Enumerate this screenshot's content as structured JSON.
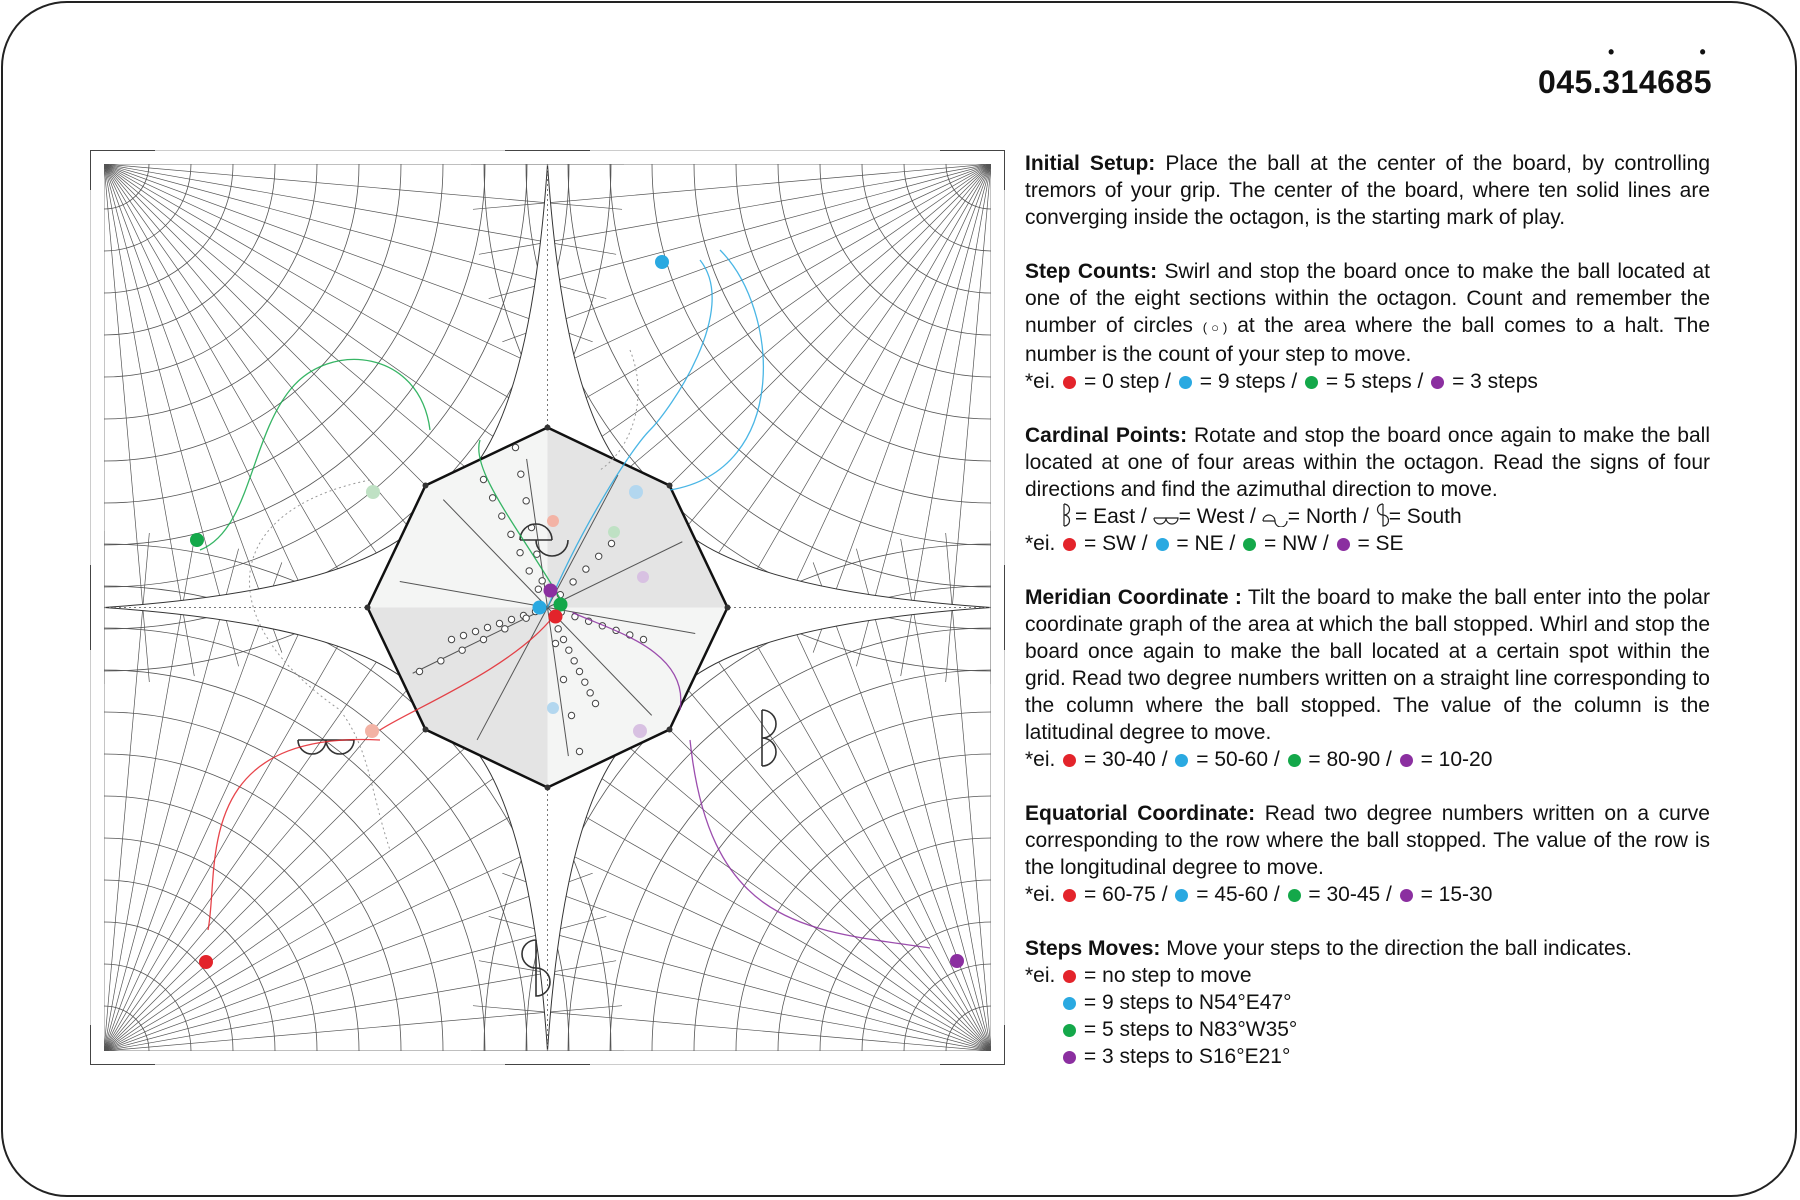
{
  "code": {
    "prefix": "045.",
    "d1": "3",
    "middle": "1468",
    "d2": "5"
  },
  "colors": {
    "red": "#e3242b",
    "blue": "#2aa9e1",
    "green": "#14a84a",
    "purple": "#8b2fa0",
    "red_light": "#f3b3a5",
    "blue_light": "#b3d7ef",
    "green_light": "#bfe1c4",
    "purple_light": "#d8c1e2"
  },
  "instructions": {
    "setup": {
      "title": "Initial Setup:",
      "text": "Place the ball at the center of the board, by controlling tremors of your grip. The center of the board, where ten solid lines are converging inside the octagon, is the starting mark of play."
    },
    "steps": {
      "title": "Step Counts:",
      "text1": "Swirl and stop the board once to make the ball located at one of the eight sections within the octagon. Count and remember the number of circles",
      "circle_symbol": "(○)",
      "text2": "at the area where the ball comes to a halt. The number is the count of your step to move.",
      "ex": {
        "prefix": "*ei.",
        "red": "= 0 step /",
        "blue": "= 9 steps /",
        "green": "= 5 steps /",
        "purple": "= 3 steps"
      }
    },
    "cardinal": {
      "title": "Cardinal Points:",
      "text": "Rotate and stop the board once again to make the ball located at one of four areas within the octagon. Read the signs of four directions and find the azimuthal direction to move.",
      "dirs": {
        "east": "= East /",
        "west": "= West /",
        "north": "= North /",
        "south": "= South"
      },
      "ex": {
        "prefix": "*ei.",
        "red": "= SW /",
        "blue": "= NE /",
        "green": "= NW /",
        "purple": "= SE"
      }
    },
    "meridian": {
      "title": "Meridian Coordinate :",
      "text": "Tilt the board to make the ball enter into the polar coordinate graph of the area at which the ball stopped. Whirl and stop the board once again to make the ball located at a certain spot within the grid. Read two degree numbers written on a straight line corresponding to the column where the ball stopped. The value of the column is the latitudinal degree to move.",
      "ex": {
        "prefix": "*ei.",
        "red": "= 30-40 /",
        "blue": " = 50-60 /",
        "green": "= 80-90 /",
        "purple": "= 10-20"
      }
    },
    "equatorial": {
      "title": "Equatorial Coordinate:",
      "text": "Read two degree numbers written on a curve corresponding to the row where the ball stopped. The value of the row is the longitudinal degree to move.",
      "ex": {
        "prefix": "*ei.",
        "red": "= 60-75 /",
        "blue": "= 45-60 /",
        "green": "= 30-45 /",
        "purple": "= 15-30"
      }
    },
    "moves": {
      "title": "Steps Moves:",
      "text": "Move your steps to the direction the ball indicates.",
      "ex": {
        "prefix": "*ei.",
        "red": "= no step to move",
        "blue": "= 9 steps to N54°E47°",
        "green": "= 5 steps to N83°W35°",
        "purple": "= 3 steps to S16°E21°"
      }
    }
  }
}
